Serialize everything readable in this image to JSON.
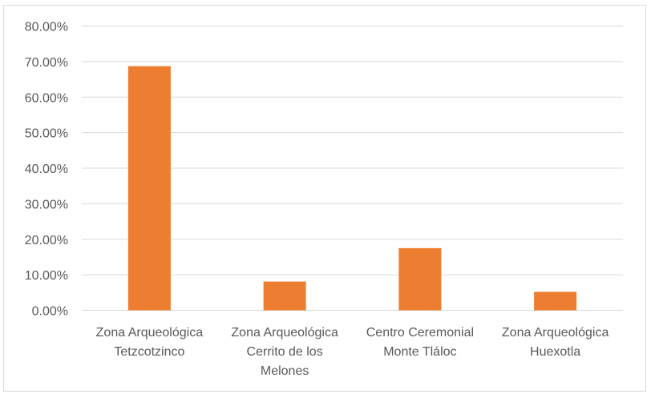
{
  "chart_data": {
    "type": "bar",
    "title": "",
    "xlabel": "",
    "ylabel": "",
    "categories": [
      [
        "Zona Arqueológica",
        "Tetzcotzinco"
      ],
      [
        "Zona Arqueológica",
        "Cerrito de los",
        "Melones"
      ],
      [
        "Centro Ceremonial",
        "Monte Tláloc"
      ],
      [
        "Zona Arqueológica",
        "Huexotla"
      ]
    ],
    "values": [
      0.687,
      0.081,
      0.175,
      0.052
    ],
    "ylim": [
      0,
      0.8
    ],
    "y_ticks": [
      "0.00%",
      "10.00%",
      "20.00%",
      "30.00%",
      "40.00%",
      "50.00%",
      "60.00%",
      "70.00%",
      "80.00%"
    ],
    "grid": true,
    "legend": "none",
    "bar_color": "#ed7d31",
    "grid_color": "#d9d9d9"
  }
}
